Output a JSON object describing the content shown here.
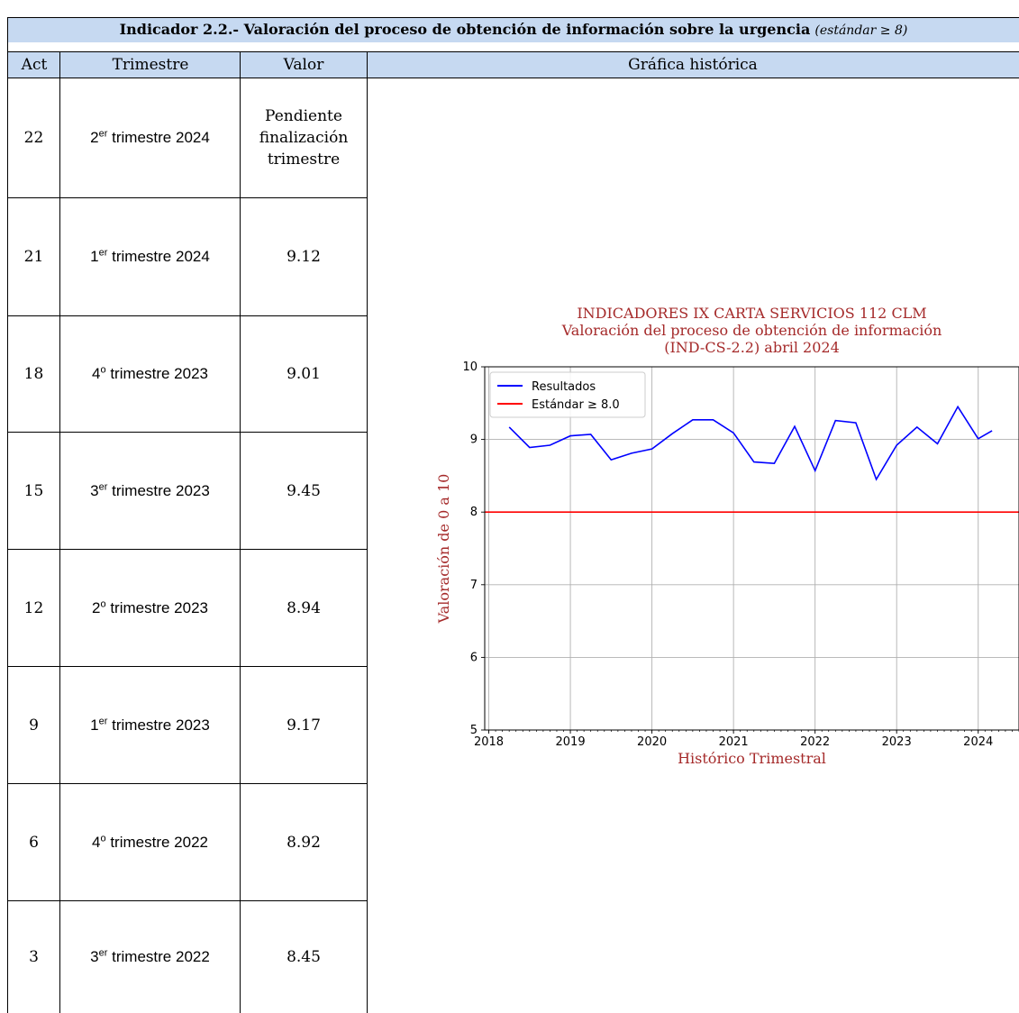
{
  "title": {
    "main": "Indicador 2.2.- Valoración del proceso de obtención de información sobre la urgencia",
    "standard": "(estándar ≥ 8)"
  },
  "columns": {
    "act": "Act",
    "trimestre": "Trimestre",
    "valor": "Valor",
    "grafica": "Gráfica histórica"
  },
  "rows": [
    {
      "act": "22",
      "ordinal": "2",
      "sup": "er",
      "period": " trimestre 2024",
      "valor": "Pendiente finalización trimestre"
    },
    {
      "act": "21",
      "ordinal": "1",
      "sup": "er",
      "period": " trimestre 2024",
      "valor": "9.12"
    },
    {
      "act": "18",
      "ordinal": "4",
      "sup": "o",
      "period": " trimestre 2023",
      "valor": "9.01"
    },
    {
      "act": "15",
      "ordinal": "3",
      "sup": "er",
      "period": " trimestre 2023",
      "valor": "9.45"
    },
    {
      "act": "12",
      "ordinal": "2",
      "sup": "o",
      "period": " trimestre 2023",
      "valor": "8.94"
    },
    {
      "act": "9",
      "ordinal": "1",
      "sup": "er",
      "period": " trimestre 2023",
      "valor": "9.17"
    },
    {
      "act": "6",
      "ordinal": "4",
      "sup": "o",
      "period": " trimestre 2022",
      "valor": "8.92"
    },
    {
      "act": "3",
      "ordinal": "3",
      "sup": "er",
      "period": " trimestre 2022",
      "valor": "8.45"
    }
  ],
  "chart_data": {
    "type": "line",
    "title": [
      "INDICADORES IX CARTA SERVICIOS 112 CLM",
      "Valoración del proceso de obtención de información",
      "(IND-CS-2.2) abril 2024"
    ],
    "xlabel": "Histórico Trimestral",
    "ylabel": "Valoración de 0 a 10",
    "xlim": [
      2017.95,
      2024.5
    ],
    "ylim": [
      5,
      10
    ],
    "xticks": [
      2018,
      2019,
      2020,
      2021,
      2022,
      2023,
      2024
    ],
    "yticks": [
      5,
      6,
      7,
      8,
      9,
      10
    ],
    "grid": true,
    "legend_position": "upper-left",
    "title_color": "#a52a2a",
    "series": [
      {
        "name": "Resultados",
        "color": "#0000ff",
        "x": [
          2018.25,
          2018.5,
          2018.75,
          2019.0,
          2019.25,
          2019.5,
          2019.75,
          2020.0,
          2020.25,
          2020.5,
          2020.75,
          2021.0,
          2021.25,
          2021.5,
          2021.75,
          2022.0,
          2022.25,
          2022.5,
          2022.75,
          2023.0,
          2023.25,
          2023.5,
          2023.75,
          2024.0,
          2024.17
        ],
        "y": [
          9.17,
          8.89,
          8.92,
          9.05,
          9.07,
          8.72,
          8.81,
          8.87,
          9.08,
          9.27,
          9.27,
          9.09,
          8.69,
          8.67,
          9.18,
          8.57,
          9.26,
          9.23,
          8.45,
          8.92,
          9.17,
          8.94,
          9.45,
          9.01,
          9.12
        ]
      },
      {
        "name": "Estándar ≥ 8.0",
        "color": "#ff0000",
        "x": [
          2017.95,
          2024.5
        ],
        "y": [
          8.0,
          8.0
        ]
      }
    ]
  }
}
